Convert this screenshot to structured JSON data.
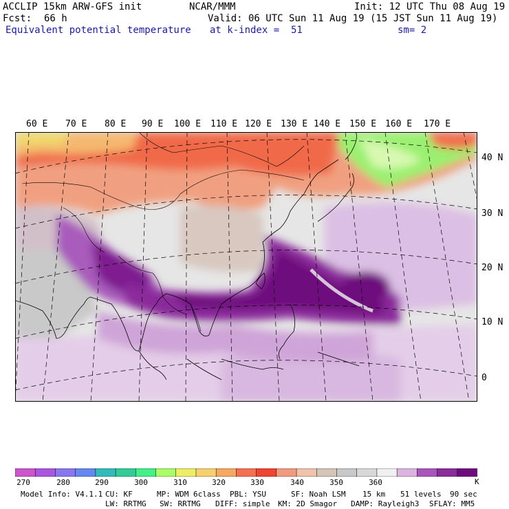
{
  "header": {
    "model": "ACCLIP 15km ARW-GFS init",
    "center": "NCAR/MMM",
    "init": "Init: 12 UTC Thu 08 Aug 19",
    "fcst_label": "Fcst:",
    "fcst_value": "66 h",
    "valid": "Valid: 06 UTC Sun 11 Aug 19 (15 JST Sun 11 Aug 19)",
    "field": "Equivalent potential temperature",
    "level": "at k-index =  51",
    "smoothing": "sm= 2"
  },
  "map": {
    "lon_labels": [
      "60 E",
      "70 E",
      "80 E",
      "90 E",
      "100 E",
      "110 E",
      "120 E",
      "130 E",
      "140 E",
      "150 E",
      "160 E",
      "170 E"
    ],
    "lat_labels": [
      "40 N",
      "30 N",
      "20 N",
      "10 N",
      "0"
    ]
  },
  "colorbar": {
    "colors": [
      "#cc55cc",
      "#aa55dd",
      "#8877ee",
      "#6688ee",
      "#33bbbb",
      "#33cc99",
      "#44ee88",
      "#aaff66",
      "#eeee66",
      "#f5d070",
      "#f5a860",
      "#f57050",
      "#ee4433",
      "#f09a80",
      "#eec3aa",
      "#d5c4b8",
      "#c8c8c8",
      "#d8d8d8",
      "#f0f0f0",
      "#ddb3e0",
      "#aa55bb",
      "#8b2c9b",
      "#6e0a7d"
    ],
    "tick_labels": [
      "270",
      "280",
      "290",
      "300",
      "310",
      "320",
      "330",
      "340",
      "350",
      "360"
    ],
    "unit": "K"
  },
  "model_info": {
    "line1": [
      "Model Info: V4.1.1",
      "CU: KF",
      "MP: WDM 6class",
      "PBL: YSU",
      "SF: Noah LSM",
      "15 km",
      "51 levels",
      "90 sec"
    ],
    "line2": [
      "LW: RRTMG",
      "SW: RRTMG",
      "DIFF: simple",
      "KM: 2D Smagor",
      "DAMP: Rayleigh3",
      "SFLAY: MM5"
    ]
  }
}
